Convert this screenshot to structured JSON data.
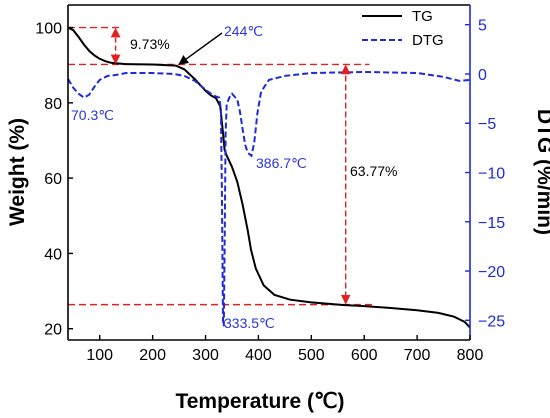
{
  "colors": {
    "tg": "#000000",
    "dtg": "#1f2ad9",
    "guide": "#e32020",
    "right_axis": "#1f2ad9"
  },
  "chart_data": {
    "type": "line",
    "title": "",
    "xlabel": "Temperature (℃)",
    "ylabel": "Weight (%)",
    "y2label": "DTG (%/min)",
    "xlim": [
      40,
      800
    ],
    "ylim": [
      17,
      106
    ],
    "y2lim": [
      -27,
      7
    ],
    "x_ticks": [
      100,
      200,
      300,
      400,
      500,
      600,
      700,
      800
    ],
    "y_ticks": [
      20,
      40,
      60,
      80,
      100
    ],
    "y2_ticks": [
      5,
      0,
      -5,
      -10,
      -15,
      -20,
      -25
    ],
    "grid": false,
    "legend_position": "top-right",
    "series": [
      {
        "name": "TG",
        "axis": "left",
        "style": "solid",
        "x": [
          40,
          50,
          60,
          70,
          80,
          90,
          100,
          110,
          120,
          130,
          150,
          200,
          244,
          260,
          280,
          300,
          310,
          320,
          328,
          333,
          336,
          340,
          350,
          360,
          370,
          380,
          386,
          395,
          410,
          430,
          460,
          500,
          560,
          600,
          650,
          700,
          740,
          770,
          790,
          800
        ],
        "y": [
          100,
          99.3,
          97.5,
          95.5,
          93.8,
          92.6,
          91.7,
          91.1,
          90.7,
          90.5,
          90.3,
          90.2,
          89.9,
          88.9,
          86.3,
          83.2,
          82.0,
          81.2,
          79.0,
          72.0,
          67.5,
          66.0,
          63.0,
          59.0,
          53.0,
          46.0,
          41.0,
          36.0,
          31.5,
          29.0,
          27.7,
          27.0,
          26.3,
          26.0,
          25.5,
          24.9,
          24.2,
          23.2,
          21.8,
          20.3
        ]
      },
      {
        "name": "DTG",
        "axis": "right",
        "style": "dashed",
        "x": [
          40,
          50,
          60,
          70,
          80,
          90,
          100,
          115,
          130,
          150,
          200,
          240,
          260,
          280,
          300,
          310,
          320,
          326,
          329,
          331,
          333,
          334.5,
          336,
          338,
          340,
          345,
          350,
          360,
          365,
          370,
          375,
          380,
          386.7,
          392,
          398,
          405,
          420,
          450,
          500,
          600,
          700,
          750,
          780,
          800
        ],
        "y": [
          -0.5,
          -1.4,
          -2.0,
          -2.4,
          -2.1,
          -1.3,
          -0.6,
          -0.2,
          -0.1,
          0.1,
          0.1,
          0.0,
          -0.2,
          -0.7,
          -1.6,
          -2.0,
          -2.3,
          -2.4,
          -3.6,
          -12.0,
          -25.0,
          -25.6,
          -18.0,
          -6.0,
          -3.1,
          -2.4,
          -2.0,
          -2.6,
          -3.8,
          -5.6,
          -7.2,
          -8.0,
          -8.3,
          -7.0,
          -4.0,
          -1.8,
          -0.6,
          -0.2,
          0.1,
          0.2,
          0.1,
          -0.3,
          -0.7,
          -0.6
        ]
      }
    ],
    "annotations": {
      "tg_first_loss": "9.73%",
      "tg_onset": "244℃",
      "dtg_peak_1": "70.3℃",
      "dtg_peak_2": "333.5℃",
      "dtg_peak_3": "386.7℃",
      "tg_main_loss": "63.77%"
    }
  }
}
